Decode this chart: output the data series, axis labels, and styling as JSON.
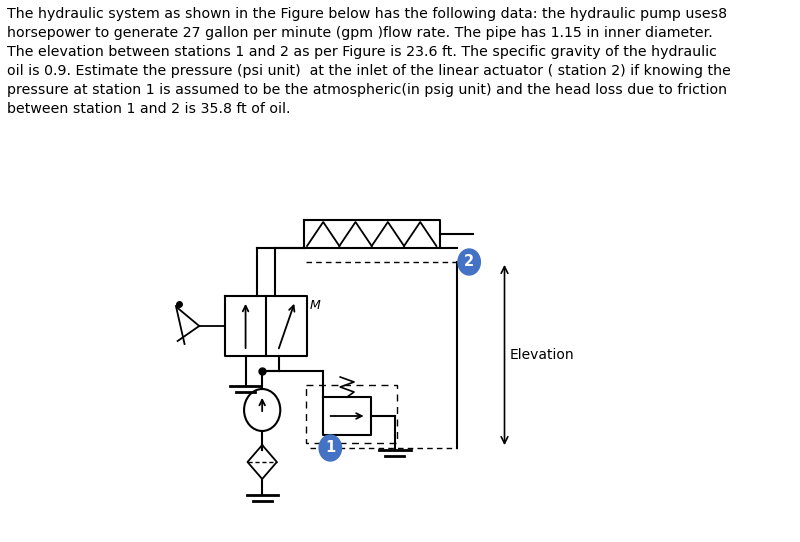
{
  "text_block": "The hydraulic system as shown in the Figure below has the following data: the hydraulic pump uses8\nhorsepower to generate 27 gallon per minute (gpm )flow rate. The pipe has 1.15 in inner diameter.\nThe elevation between stations 1 and 2 as per Figure is 23.6 ft. The specific gravity of the hydraulic\noil is 0.9. Estimate the pressure (psi unit)  at the inlet of the linear actuator ( station 2) if knowing the\npressure at station 1 is assumed to be the atmospheric(in psig unit) and the head loss due to friction\nbetween station 1 and 2 is 35.8 ft of oil.",
  "text_fontsize": 10.2,
  "background_color": "#ffffff",
  "line_color": "#000000",
  "blue_color": "#4472c4",
  "station1_label": "1",
  "station2_label": "2",
  "elevation_label": "Elevation",
  "m_label": "M"
}
